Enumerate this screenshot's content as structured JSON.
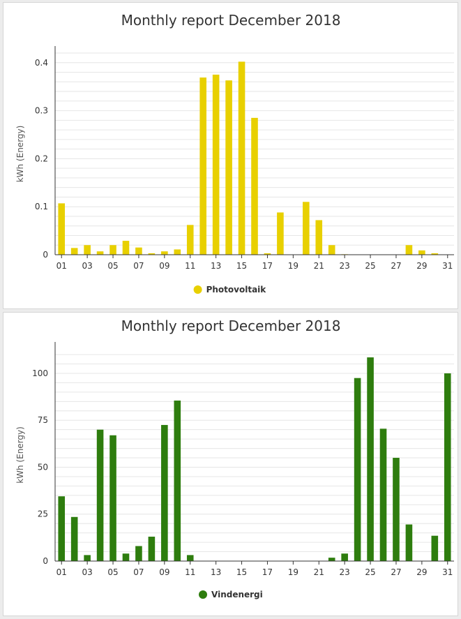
{
  "chart_data": [
    {
      "type": "bar",
      "title": "Monthly report December 2018",
      "ylabel": "kWh (Energy)",
      "xlabel": "",
      "ylim": [
        0,
        0.42
      ],
      "yticks": [
        "0",
        "0.1",
        "0.2",
        "0.3",
        "0.4"
      ],
      "ytick_values": [
        0,
        0.1,
        0.2,
        0.3,
        0.4
      ],
      "xtick_labels": [
        "01",
        "03",
        "05",
        "07",
        "09",
        "11",
        "13",
        "15",
        "17",
        "19",
        "21",
        "23",
        "25",
        "27",
        "29",
        "31"
      ],
      "categories": [
        "01",
        "02",
        "03",
        "04",
        "05",
        "06",
        "07",
        "08",
        "09",
        "10",
        "11",
        "12",
        "13",
        "14",
        "15",
        "16",
        "17",
        "18",
        "19",
        "20",
        "21",
        "22",
        "23",
        "24",
        "25",
        "26",
        "27",
        "28",
        "29",
        "30",
        "31"
      ],
      "series": [
        {
          "name": "Photovoltaik",
          "color": "#e8d000",
          "values": [
            0.107,
            0.014,
            0.02,
            0.007,
            0.02,
            0.029,
            0.015,
            0.003,
            0.007,
            0.011,
            0.062,
            0.369,
            0.375,
            0.363,
            0.402,
            0.285,
            0.003,
            0.088,
            0.0,
            0.11,
            0.072,
            0.02,
            0.001,
            0,
            0,
            0,
            0,
            0.02,
            0.009,
            0.003,
            0
          ]
        }
      ]
    },
    {
      "type": "bar",
      "title": "Monthly report December 2018",
      "ylabel": "kWh (Energy)",
      "xlabel": "",
      "ylim": [
        0,
        113
      ],
      "yticks": [
        "0",
        "25",
        "50",
        "75",
        "100"
      ],
      "ytick_values": [
        0,
        25,
        50,
        75,
        100
      ],
      "xtick_labels": [
        "01",
        "03",
        "05",
        "07",
        "09",
        "11",
        "13",
        "15",
        "17",
        "19",
        "21",
        "23",
        "25",
        "27",
        "29",
        "31"
      ],
      "categories": [
        "01",
        "02",
        "03",
        "04",
        "05",
        "06",
        "07",
        "08",
        "09",
        "10",
        "11",
        "12",
        "13",
        "14",
        "15",
        "16",
        "17",
        "18",
        "19",
        "20",
        "21",
        "22",
        "23",
        "24",
        "25",
        "26",
        "27",
        "28",
        "29",
        "30",
        "31"
      ],
      "series": [
        {
          "name": "Vindenergi",
          "color": "#2e7d0e",
          "values": [
            34.5,
            23.5,
            3.2,
            70,
            67,
            4,
            8,
            13,
            72.5,
            85.5,
            3.2,
            0,
            0,
            0,
            0,
            0,
            0,
            0,
            0,
            0,
            0,
            1.8,
            4,
            97.5,
            108.5,
            70.5,
            55,
            19.5,
            0,
            13.5,
            100
          ]
        }
      ]
    }
  ]
}
